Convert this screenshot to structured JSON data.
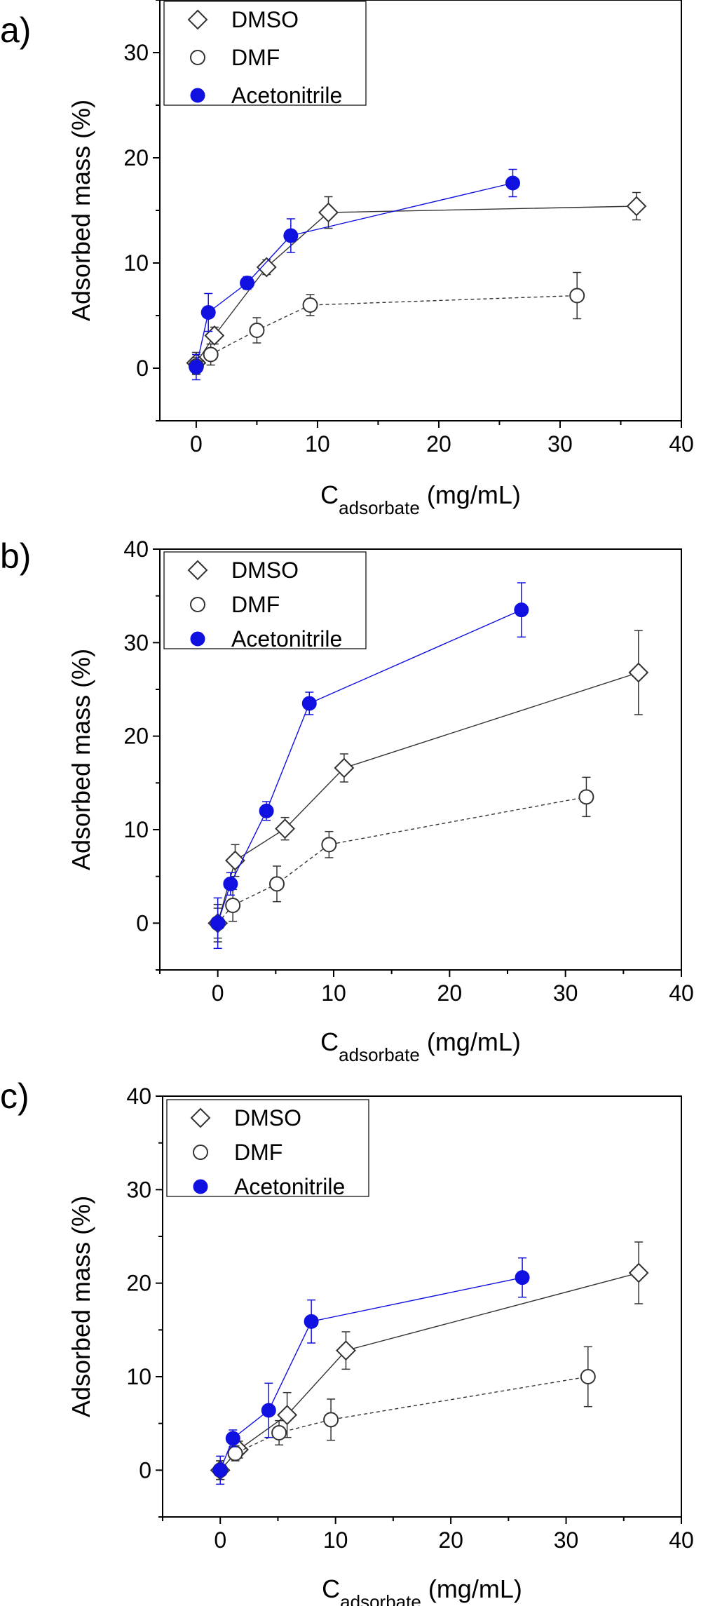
{
  "chart_data": [
    {
      "type": "scatter",
      "panel_label": "a)",
      "title": "",
      "xlabel_main": "C",
      "xlabel_sub": "adsorbate",
      "xlabel_units": "(mg/mL)",
      "ylabel": "Adsorbed mass (%)",
      "xlim": [
        -3,
        40
      ],
      "ylim": [
        -5,
        35
      ],
      "xticks": [
        0,
        10,
        20,
        30,
        40
      ],
      "yticks": [
        0,
        10,
        20,
        30
      ],
      "grid": false,
      "legend_position": "top-left",
      "series": [
        {
          "name": "DMSO",
          "marker": "diamond-open",
          "color": "#333333",
          "line": "solid",
          "x": [
            0,
            1.5,
            5.8,
            10.9,
            36.3
          ],
          "y": [
            0.5,
            3.1,
            9.6,
            14.8,
            15.4
          ],
          "err": [
            1.0,
            0.8,
            0.7,
            1.5,
            1.3
          ]
        },
        {
          "name": "DMF",
          "marker": "circle-open",
          "color": "#333333",
          "line": "dashed",
          "x": [
            0,
            1.2,
            5.0,
            9.4,
            31.4
          ],
          "y": [
            0.2,
            1.3,
            3.6,
            6.0,
            6.9
          ],
          "err": [
            0.8,
            1.0,
            1.2,
            1.0,
            2.2
          ]
        },
        {
          "name": "Acetonitrile",
          "marker": "circle-filled",
          "color": "#1010e0",
          "line": "solid",
          "x": [
            0,
            1.0,
            4.2,
            7.8,
            26.1
          ],
          "y": [
            0.1,
            5.3,
            8.1,
            12.6,
            17.6
          ],
          "err": [
            1.2,
            1.8,
            0.6,
            1.6,
            1.3
          ]
        }
      ]
    },
    {
      "type": "scatter",
      "panel_label": "b)",
      "title": "",
      "xlabel_main": "C",
      "xlabel_sub": "adsorbate",
      "xlabel_units": "(mg/mL)",
      "ylabel": "Adsorbed mass (%)",
      "xlim": [
        -5,
        40
      ],
      "ylim": [
        -5,
        40
      ],
      "xticks": [
        0,
        10,
        20,
        30,
        40
      ],
      "yticks": [
        0,
        10,
        20,
        30,
        40
      ],
      "grid": false,
      "legend_position": "top-left",
      "series": [
        {
          "name": "DMSO",
          "marker": "diamond-open",
          "color": "#333333",
          "line": "solid",
          "x": [
            0,
            1.5,
            5.8,
            10.9,
            36.3
          ],
          "y": [
            0,
            6.7,
            10.1,
            16.6,
            26.8
          ],
          "err": [
            2.0,
            1.7,
            1.2,
            1.5,
            4.5
          ]
        },
        {
          "name": "DMF",
          "marker": "circle-open",
          "color": "#333333",
          "line": "dashed",
          "x": [
            0,
            1.3,
            5.1,
            9.6,
            31.8
          ],
          "y": [
            0,
            1.9,
            4.2,
            8.4,
            13.5
          ],
          "err": [
            1.6,
            1.7,
            1.9,
            1.4,
            2.1
          ]
        },
        {
          "name": "Acetonitrile",
          "marker": "circle-filled",
          "color": "#1010e0",
          "line": "solid",
          "x": [
            0,
            1.1,
            4.2,
            7.9,
            26.2
          ],
          "y": [
            0,
            4.2,
            12.0,
            23.5,
            33.5
          ],
          "err": [
            2.7,
            1.2,
            1.0,
            1.2,
            2.9
          ]
        }
      ]
    },
    {
      "type": "scatter",
      "panel_label": "c)",
      "title": "",
      "xlabel_main": "C",
      "xlabel_sub": "adsorbate",
      "xlabel_units": "(mg/mL)",
      "ylabel": "Adsorbed mass (%)",
      "xlim": [
        -5,
        40
      ],
      "ylim": [
        -5,
        40
      ],
      "xticks": [
        0,
        10,
        20,
        30,
        40
      ],
      "yticks": [
        0,
        10,
        20,
        30,
        40
      ],
      "grid": false,
      "legend_position": "top-left",
      "series": [
        {
          "name": "DMSO",
          "marker": "diamond-open",
          "color": "#333333",
          "line": "solid",
          "x": [
            0,
            1.6,
            5.8,
            10.9,
            36.3
          ],
          "y": [
            0,
            2.2,
            5.9,
            12.8,
            21.1
          ],
          "err": [
            1.0,
            0.9,
            2.4,
            2.0,
            3.3
          ]
        },
        {
          "name": "DMF",
          "marker": "circle-open",
          "color": "#333333",
          "line": "dashed",
          "x": [
            0,
            1.3,
            5.1,
            9.6,
            31.9
          ],
          "y": [
            0,
            1.8,
            4.0,
            5.4,
            10.0
          ],
          "err": [
            1.0,
            0.8,
            1.3,
            2.2,
            3.2
          ]
        },
        {
          "name": "Acetonitrile",
          "marker": "circle-filled",
          "color": "#1010e0",
          "line": "solid",
          "x": [
            0,
            1.1,
            4.2,
            7.9,
            26.2
          ],
          "y": [
            0,
            3.4,
            6.4,
            15.9,
            20.6
          ],
          "err": [
            1.5,
            0.9,
            2.9,
            2.3,
            2.1
          ]
        }
      ]
    }
  ]
}
